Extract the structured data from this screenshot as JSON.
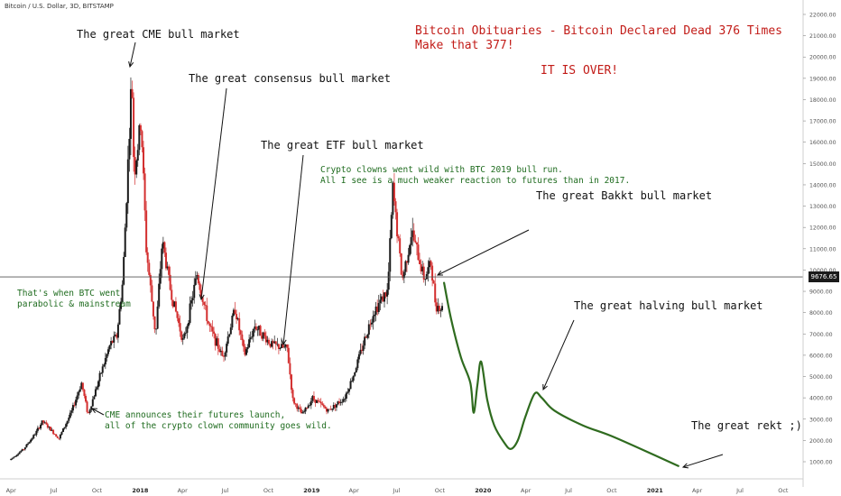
{
  "header": {
    "symbol": "Bitcoin / U.S. Dollar, 3D, BITSTAMP"
  },
  "title": {
    "line1": "Bitcoin Obituaries - Bitcoin Declared Dead 376 Times",
    "line2": "Make that 377!",
    "line3": "IT IS OVER!"
  },
  "annotations": {
    "cme": "The great CME bull market",
    "consensus": "The great consensus bull market",
    "etf": "The great ETF bull market",
    "bakkt": "The great Bakkt bull market",
    "halving": "The great halving bull market",
    "rekt": "The great rekt ;)",
    "parabolic": "That's when BTC went\nparabolic & mainstream",
    "cme_launch": "CME announces their futures launch,\nall of the crypto clown community goes wild.",
    "clowns": "Crypto clowns went wild with BTC 2019 bull run.\nAll I see is a much weaker reaction to futures than in 2017."
  },
  "current_price": "9676.65",
  "colors": {
    "up": "#1a1a1a",
    "down": "#d32f2f",
    "projection": "#2f6b1f",
    "ann_red": "#c21b17",
    "ann_green": "#1e6b1e"
  },
  "chart_data": {
    "type": "candlestick",
    "price_axis": {
      "min": 500,
      "max": 22000,
      "ticks": [
        1000,
        2000,
        3000,
        4000,
        5000,
        6000,
        7000,
        8000,
        9000,
        10000,
        11000,
        12000,
        13000,
        14000,
        15000,
        16000,
        17000,
        18000,
        19000,
        20000,
        21000,
        22000
      ],
      "tick_labels": [
        "1000.00",
        "2000.00",
        "3000.00",
        "4000.00",
        "5000.00",
        "6000.00",
        "7000.00",
        "8000.00",
        "9000.00",
        "10000.00",
        "11000.00",
        "12000.00",
        "13000.00",
        "14000.00",
        "15000.00",
        "16000.00",
        "17000.00",
        "18000.00",
        "19000.00",
        "20000.00",
        "21000.00",
        "22000.00"
      ]
    },
    "time_axis": {
      "labels": [
        "Apr",
        "Jul",
        "Oct",
        "2018",
        "Apr",
        "Jul",
        "Oct",
        "2019",
        "Apr",
        "Jul",
        "Oct",
        "2020",
        "Apr",
        "Jul",
        "Oct",
        "2021",
        "Apr",
        "Jul",
        "Oct"
      ],
      "bold": [
        "2018",
        "2019",
        "2020",
        "2021"
      ]
    },
    "price_path": [
      [
        "2017-04-01",
        1080
      ],
      [
        "2017-05-01",
        1600
      ],
      [
        "2017-05-25",
        2300
      ],
      [
        "2017-06-10",
        2900
      ],
      [
        "2017-07-15",
        2100
      ],
      [
        "2017-08-10",
        3300
      ],
      [
        "2017-09-01",
        4700
      ],
      [
        "2017-09-15",
        3200
      ],
      [
        "2017-10-10",
        5000
      ],
      [
        "2017-11-01",
        6500
      ],
      [
        "2017-11-15",
        6900
      ],
      [
        "2017-11-28",
        9500
      ],
      [
        "2017-12-07",
        14000
      ],
      [
        "2017-12-17",
        19200
      ],
      [
        "2017-12-22",
        14500
      ],
      [
        "2018-01-06",
        17000
      ],
      [
        "2018-01-17",
        11000
      ],
      [
        "2018-02-06",
        6900
      ],
      [
        "2018-02-20",
        11400
      ],
      [
        "2018-03-10",
        9000
      ],
      [
        "2018-04-06",
        6600
      ],
      [
        "2018-05-05",
        9800
      ],
      [
        "2018-05-30",
        7400
      ],
      [
        "2018-06-29",
        5900
      ],
      [
        "2018-07-25",
        8200
      ],
      [
        "2018-08-14",
        6000
      ],
      [
        "2018-09-05",
        7400
      ],
      [
        "2018-10-10",
        6500
      ],
      [
        "2018-11-13",
        6300
      ],
      [
        "2018-11-25",
        3900
      ],
      [
        "2018-12-15",
        3200
      ],
      [
        "2019-01-06",
        4000
      ],
      [
        "2019-02-08",
        3400
      ],
      [
        "2019-03-15",
        4000
      ],
      [
        "2019-04-02",
        5000
      ],
      [
        "2019-05-15",
        8000
      ],
      [
        "2019-06-01",
        8600
      ],
      [
        "2019-06-15",
        9000
      ],
      [
        "2019-06-26",
        13800
      ],
      [
        "2019-07-16",
        9500
      ],
      [
        "2019-08-05",
        11800
      ],
      [
        "2019-09-01",
        9600
      ],
      [
        "2019-09-15",
        10300
      ],
      [
        "2019-09-25",
        8400
      ],
      [
        "2019-10-07",
        8200
      ]
    ],
    "projection": [
      [
        "2019-10-10",
        9400
      ],
      [
        "2019-10-25",
        7700
      ],
      [
        "2019-11-15",
        5900
      ],
      [
        "2019-12-05",
        4700
      ],
      [
        "2019-12-12",
        3300
      ],
      [
        "2019-12-20",
        4600
      ],
      [
        "2019-12-28",
        5700
      ],
      [
        "2020-01-10",
        3900
      ],
      [
        "2020-01-25",
        2700
      ],
      [
        "2020-02-15",
        1900
      ],
      [
        "2020-02-29",
        1600
      ],
      [
        "2020-03-15",
        2000
      ],
      [
        "2020-03-31",
        3100
      ],
      [
        "2020-04-20",
        4200
      ],
      [
        "2020-05-05",
        4000
      ],
      [
        "2020-06-01",
        3400
      ],
      [
        "2020-08-01",
        2700
      ],
      [
        "2020-10-01",
        2200
      ],
      [
        "2021-01-01",
        1300
      ],
      [
        "2021-02-20",
        800
      ]
    ]
  }
}
